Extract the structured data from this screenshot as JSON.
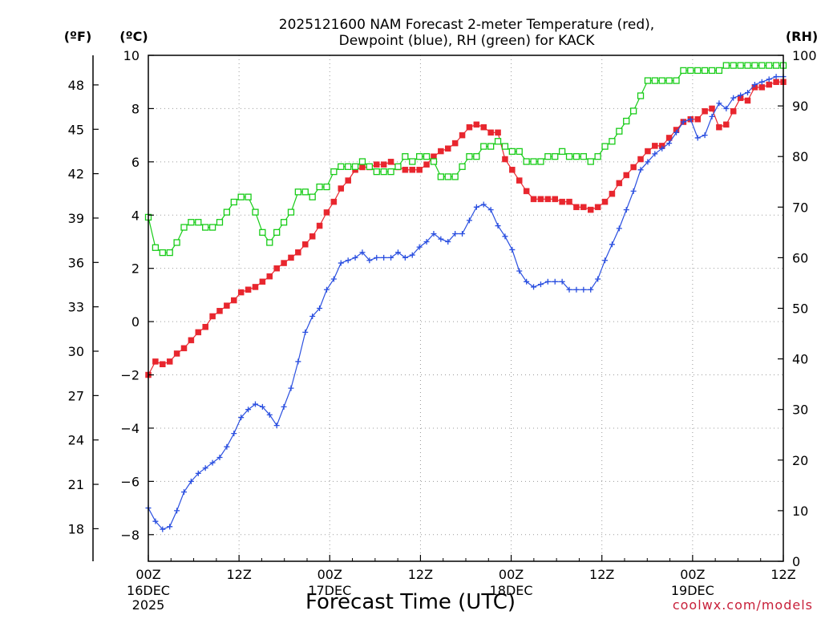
{
  "chart_data": {
    "type": "line",
    "title": [
      "2025121600 NAM Forecast 2-meter Temperature (red),",
      "Dewpoint (blue), RH (green) for KACK"
    ],
    "xlabel": "Forecast Time (UTC)",
    "credit": "coolwx.com/models",
    "station": "KACK",
    "x_unit": "forecast hour",
    "xlim": [
      0,
      84
    ],
    "x_ticks": [
      {
        "hour": 0,
        "label": "00Z",
        "sub": [
          "16DEC",
          "2025"
        ]
      },
      {
        "hour": 12,
        "label": "12Z",
        "sub": []
      },
      {
        "hour": 24,
        "label": "00Z",
        "sub": [
          "17DEC"
        ]
      },
      {
        "hour": 36,
        "label": "12Z",
        "sub": []
      },
      {
        "hour": 48,
        "label": "00Z",
        "sub": [
          "18DEC"
        ]
      },
      {
        "hour": 60,
        "label": "12Z",
        "sub": []
      },
      {
        "hour": 72,
        "label": "00Z",
        "sub": [
          "19DEC"
        ]
      },
      {
        "hour": 84,
        "label": "12Z",
        "sub": []
      }
    ],
    "y_celsius": {
      "unit": "(ºC)",
      "ylim": [
        -9,
        10
      ],
      "ticks": [
        -8,
        -6,
        -4,
        -2,
        0,
        2,
        4,
        6,
        8,
        10
      ]
    },
    "y_fahrenheit": {
      "unit": "(ºF)",
      "ticks": [
        18,
        21,
        24,
        27,
        30,
        33,
        36,
        39,
        42,
        45,
        48
      ]
    },
    "y_rh": {
      "unit": "(RH)",
      "ylim": [
        0,
        100
      ],
      "ticks": [
        0,
        10,
        20,
        30,
        40,
        50,
        60,
        70,
        80,
        90,
        100
      ]
    },
    "series": [
      {
        "name": "2-meter Temperature",
        "axis": "celsius",
        "color": "#e8262e",
        "marker": "filled-square",
        "values": [
          -2.0,
          -1.5,
          -1.6,
          -1.5,
          -1.2,
          -1.0,
          -0.7,
          -0.4,
          -0.2,
          0.2,
          0.4,
          0.6,
          0.8,
          1.1,
          1.2,
          1.3,
          1.5,
          1.7,
          2.0,
          2.2,
          2.4,
          2.6,
          2.9,
          3.2,
          3.6,
          4.1,
          4.5,
          5.0,
          5.3,
          5.7,
          5.8,
          5.8,
          5.9,
          5.9,
          6.0,
          5.8,
          5.7,
          5.7,
          5.7,
          5.9,
          6.2,
          6.4,
          6.5,
          6.7,
          7.0,
          7.3,
          7.4,
          7.3,
          7.1,
          7.1,
          6.1,
          5.7,
          5.3,
          4.9,
          4.6,
          4.6,
          4.6,
          4.6,
          4.5,
          4.5,
          4.3,
          4.3,
          4.2,
          4.3,
          4.5,
          4.8,
          5.2,
          5.5,
          5.8,
          6.1,
          6.4,
          6.6,
          6.6,
          6.9,
          7.2,
          7.5,
          7.6,
          7.6,
          7.9,
          8.0,
          7.3,
          7.4,
          7.9,
          8.4,
          8.3,
          8.8,
          8.8,
          8.9,
          9.0,
          9.0
        ]
      },
      {
        "name": "Dewpoint",
        "axis": "celsius",
        "color": "#2a4fe0",
        "marker": "plus",
        "values": [
          -7.0,
          -7.5,
          -7.8,
          -7.7,
          -7.1,
          -6.4,
          -6.0,
          -5.7,
          -5.5,
          -5.3,
          -5.1,
          -4.7,
          -4.2,
          -3.6,
          -3.3,
          -3.1,
          -3.2,
          -3.5,
          -3.9,
          -3.2,
          -2.5,
          -1.5,
          -0.4,
          0.2,
          0.5,
          1.2,
          1.6,
          2.2,
          2.3,
          2.4,
          2.6,
          2.3,
          2.4,
          2.4,
          2.4,
          2.6,
          2.4,
          2.5,
          2.8,
          3.0,
          3.3,
          3.1,
          3.0,
          3.3,
          3.3,
          3.8,
          4.3,
          4.4,
          4.2,
          3.6,
          3.2,
          2.7,
          1.9,
          1.5,
          1.3,
          1.4,
          1.5,
          1.5,
          1.5,
          1.2,
          1.2,
          1.2,
          1.2,
          1.6,
          2.3,
          2.9,
          3.5,
          4.2,
          4.9,
          5.7,
          6.0,
          6.3,
          6.5,
          6.7,
          7.1,
          7.5,
          7.6,
          6.9,
          7.0,
          7.7,
          8.2,
          8.0,
          8.4,
          8.5,
          8.6,
          8.9,
          9.0,
          9.1,
          9.2,
          9.2
        ]
      },
      {
        "name": "Relative Humidity",
        "axis": "rh",
        "color": "#18cc18",
        "marker": "open-square",
        "values": [
          68,
          62,
          61,
          61,
          63,
          66,
          67,
          67,
          66,
          66,
          67,
          69,
          71,
          72,
          72,
          69,
          65,
          63,
          65,
          67,
          69,
          73,
          73,
          72,
          74,
          74,
          77,
          78,
          78,
          78,
          79,
          78,
          77,
          77,
          77,
          78,
          80,
          79,
          80,
          80,
          79,
          76,
          76,
          76,
          78,
          80,
          80,
          82,
          82,
          83,
          82,
          81,
          81,
          79,
          79,
          79,
          80,
          80,
          81,
          80,
          80,
          80,
          79,
          80,
          82,
          83,
          85,
          87,
          89,
          92,
          95,
          95,
          95,
          95,
          95,
          97,
          97,
          97,
          97,
          97,
          97,
          98,
          98,
          98,
          98,
          98,
          98,
          98,
          98,
          98
        ]
      }
    ]
  }
}
